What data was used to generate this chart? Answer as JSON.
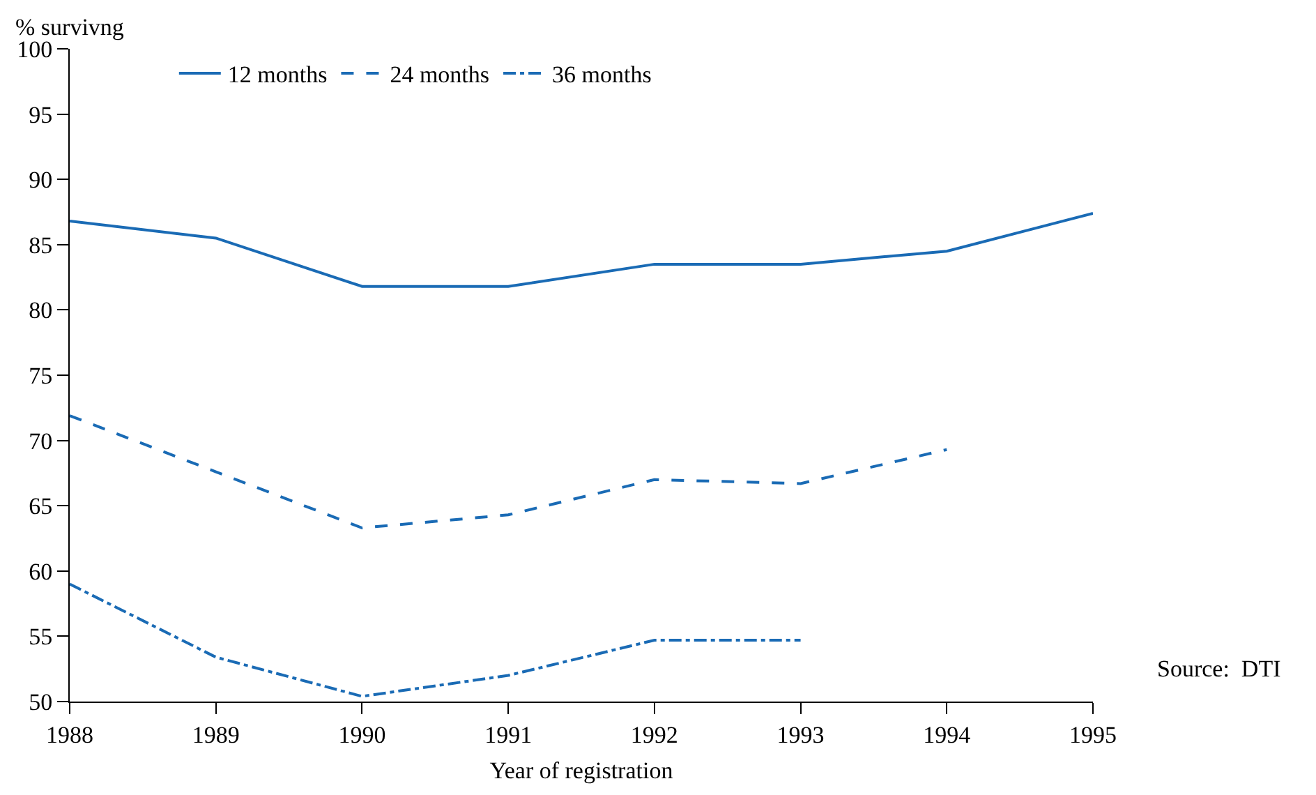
{
  "chart_data": {
    "type": "line",
    "xlabel": "Year of registration",
    "ylabel": "% survivng",
    "x": [
      1988,
      1989,
      1990,
      1991,
      1992,
      1993,
      1994,
      1995
    ],
    "series": [
      {
        "name": "12 months",
        "color": "#1a6bb5",
        "line_style": "solid",
        "values": [
          86.8,
          85.5,
          81.8,
          81.8,
          83.5,
          83.5,
          84.5,
          87.4
        ]
      },
      {
        "name": "24 months",
        "color": "#1a6bb5",
        "line_style": "dashed",
        "values": [
          71.9,
          67.6,
          63.3,
          64.3,
          67.0,
          66.7,
          69.3,
          null
        ]
      },
      {
        "name": "36 months",
        "color": "#1a6bb5",
        "line_style": "dashdot",
        "values": [
          59.0,
          53.4,
          50.4,
          52.0,
          54.7,
          54.7,
          null,
          null
        ]
      }
    ],
    "xlim": [
      1988,
      1995
    ],
    "xticks": [
      1988,
      1989,
      1990,
      1991,
      1992,
      1993,
      1994,
      1995
    ],
    "ylim": [
      50,
      100
    ],
    "yticks": [
      50,
      55,
      60,
      65,
      70,
      75,
      80,
      85,
      90,
      95,
      100
    ],
    "grid": false,
    "legend": "top",
    "marker": "none",
    "annotations": [
      "Source:  DTI"
    ]
  }
}
